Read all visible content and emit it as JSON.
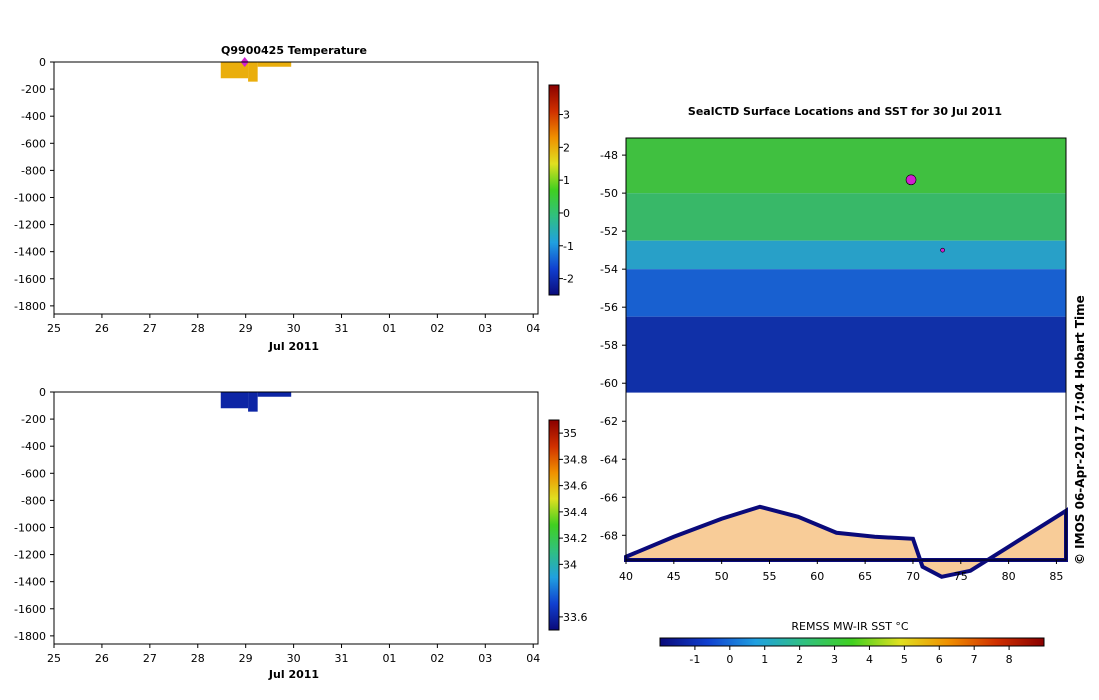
{
  "chart_data": [
    {
      "type": "bar",
      "title": "Q9900425  Temperature",
      "xlabel": "Jul 2011",
      "ylabel": "",
      "x_ticks": [
        "25",
        "26",
        "27",
        "28",
        "29",
        "30",
        "31",
        "01",
        "02",
        "03",
        "04"
      ],
      "y_ticks": [
        "0",
        "-200",
        "-400",
        "-600",
        "-800",
        "-1000",
        "-1200",
        "-1400",
        "-1600",
        "-1800"
      ],
      "xlim": [
        25,
        35.1
      ],
      "ylim": [
        -1860,
        0
      ],
      "profiles": [
        {
          "x_start": 28.48,
          "x_end": 29.05,
          "depth": -120,
          "value": 2.0
        },
        {
          "x_start": 29.05,
          "x_end": 29.25,
          "depth": -145,
          "value": 2.0
        },
        {
          "x_start": 29.25,
          "x_end": 29.95,
          "depth": -35,
          "value": 2.0
        }
      ],
      "marker": {
        "x": 28.98,
        "depth": 0,
        "color": "#d020d0"
      },
      "colorbar": {
        "min": -2.5,
        "max": 3.9,
        "ticks": [
          "-2",
          "-1",
          "0",
          "1",
          "2",
          "3"
        ],
        "colors": [
          "#0a0a7a",
          "#1040d0",
          "#20a0e0",
          "#30c080",
          "#40d020",
          "#e0e020",
          "#f09000",
          "#d03000",
          "#8a0000"
        ]
      }
    },
    {
      "type": "bar",
      "title": "",
      "xlabel": "Jul 2011",
      "ylabel": "",
      "x_ticks": [
        "25",
        "26",
        "27",
        "28",
        "29",
        "30",
        "31",
        "01",
        "02",
        "03",
        "04"
      ],
      "y_ticks": [
        "0",
        "-200",
        "-400",
        "-600",
        "-800",
        "-1000",
        "-1200",
        "-1400",
        "-1600",
        "-1800"
      ],
      "xlim": [
        25,
        35.1
      ],
      "ylim": [
        -1860,
        0
      ],
      "profiles": [
        {
          "x_start": 28.48,
          "x_end": 29.05,
          "depth": -120,
          "value": 33.6
        },
        {
          "x_start": 29.05,
          "x_end": 29.25,
          "depth": -145,
          "value": 33.6
        },
        {
          "x_start": 29.25,
          "x_end": 29.95,
          "depth": -35,
          "value": 33.6
        }
      ],
      "colorbar": {
        "min": 33.5,
        "max": 35.1,
        "ticks": [
          "33.6",
          "34",
          "34.2",
          "34.4",
          "34.6",
          "34.8",
          "35"
        ],
        "colors": [
          "#0a0a7a",
          "#1040d0",
          "#20a0e0",
          "#30c080",
          "#40d020",
          "#e0e020",
          "#f09000",
          "#d03000",
          "#8a0000"
        ]
      }
    },
    {
      "type": "heatmap",
      "title": "SealCTD Surface Locations and SST for 30 Jul 2011",
      "xlabel": "",
      "ylabel": "",
      "x_ticks": [
        "40",
        "45",
        "50",
        "55",
        "60",
        "65",
        "70",
        "75",
        "80",
        "85"
      ],
      "y_ticks": [
        "-48",
        "-50",
        "-52",
        "-54",
        "-56",
        "-58",
        "-60",
        "-62",
        "-64",
        "-66",
        "-68"
      ],
      "xlim": [
        40,
        86
      ],
      "ylim": [
        -69.3,
        -47.1
      ],
      "colorbar_label": "REMSS MW-IR SST °C",
      "colorbar_ticks": [
        "-1",
        "0",
        "1",
        "2",
        "3",
        "4",
        "5",
        "6",
        "7",
        "8"
      ],
      "colorbar_range": [
        -2,
        9
      ],
      "colorbar_colors": [
        "#0a0a7a",
        "#1040d0",
        "#20a0e0",
        "#30c080",
        "#40d020",
        "#e0e020",
        "#f09000",
        "#d03000",
        "#8a0000"
      ],
      "sst_bands": [
        {
          "lat_top": -47.1,
          "lat_bottom": -50.0,
          "color": "#40c040"
        },
        {
          "lat_top": -50.0,
          "lat_bottom": -52.5,
          "color": "#38b868"
        },
        {
          "lat_top": -52.5,
          "lat_bottom": -54.0,
          "color": "#28a0c8"
        },
        {
          "lat_top": -54.0,
          "lat_bottom": -56.5,
          "color": "#1860d0"
        },
        {
          "lat_top": -56.5,
          "lat_bottom": -60.5,
          "color": "#1030a8"
        }
      ],
      "ice_edge_lat": -60.5,
      "coast_lat": -66.5,
      "land_color": "#f8cc98",
      "seal_locations": [
        {
          "lon": 69.8,
          "lat": -49.3
        },
        {
          "lon": 73.1,
          "lat": -53.0
        }
      ],
      "credit": "© IMOS 06-Apr-2017 17:04 Hobart Time"
    }
  ]
}
